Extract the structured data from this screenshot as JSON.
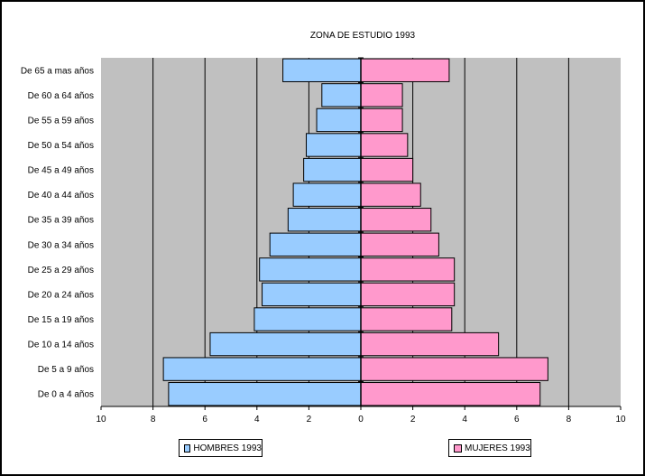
{
  "chart_data": {
    "type": "bar",
    "orientation": "horizontal",
    "title": "ZONA DE ESTUDIO 1993",
    "categories": [
      "De 65 a mas años",
      "De 60 a 64 años",
      "De 55 a 59 años",
      "De 50 a 54 años",
      "De 45 a 49 años",
      "De 40 a 44 años",
      "De 35 a 39 años",
      "De 30 a 34 años",
      "De 25 a 29 años",
      "De 20 a 24 años",
      "De 15 a 19 años",
      "De 10 a 14 años",
      "De 5 a 9 años",
      "De 0 a 4 años"
    ],
    "series": [
      {
        "name": "HOMBRES 1993",
        "color": "#99CCFF",
        "side": "left",
        "values": [
          3.0,
          1.5,
          1.7,
          2.1,
          2.2,
          2.6,
          2.8,
          3.5,
          3.9,
          3.8,
          4.1,
          5.8,
          7.6,
          7.4
        ]
      },
      {
        "name": "MUJERES 1993",
        "color": "#FF99CC",
        "side": "right",
        "values": [
          3.4,
          1.6,
          1.6,
          1.8,
          2.0,
          2.3,
          2.7,
          3.0,
          3.6,
          3.6,
          3.5,
          5.3,
          7.2,
          6.9
        ]
      }
    ],
    "x_ticks": [
      "10",
      "8",
      "6",
      "4",
      "2",
      "0",
      "2",
      "4",
      "6",
      "8",
      "10"
    ],
    "xlim": [
      -10,
      10
    ],
    "grid": true,
    "plot_background": "#C0C0C0",
    "legend_position": "bottom"
  }
}
